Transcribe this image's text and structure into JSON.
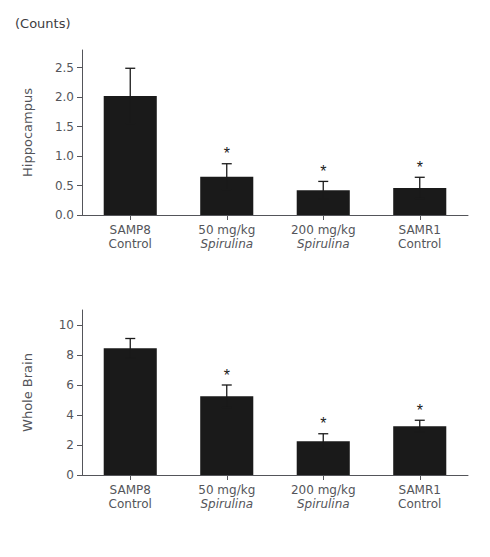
{
  "chart_data": [
    {
      "type": "bar",
      "annotations": [
        "(Counts)"
      ],
      "ylabel": "Hippocampus",
      "categories": [
        "SAMP8\nControl",
        "50 mg/kg\nSpirulina",
        "200 mg/kg\nSpirulina",
        "SAMR1\nControl"
      ],
      "italic": [
        false,
        true,
        true,
        false
      ],
      "values": [
        2.02,
        0.65,
        0.42,
        0.46
      ],
      "errors": [
        0.47,
        0.22,
        0.15,
        0.18
      ],
      "significance": [
        null,
        "*",
        "*",
        "*"
      ],
      "color": "#1a1a1a",
      "ylim": [
        0,
        2.8
      ],
      "yticks": [
        {
          "value": 0,
          "label": "0.0"
        },
        {
          "value": 0.5,
          "label": "0.5"
        },
        {
          "value": 1.0,
          "label": "1.0"
        },
        {
          "value": 1.5,
          "label": "1.5"
        },
        {
          "value": 2.0,
          "label": "2.0"
        },
        {
          "value": 2.5,
          "label": "2.5"
        }
      ],
      "grid": false
    },
    {
      "type": "bar",
      "ylabel": "Whole Brain",
      "categories": [
        "SAMP8\nControl",
        "50 mg/kg\nSpirulina",
        "200 mg/kg\nSpirulina",
        "SAMR1\nControl"
      ],
      "italic": [
        false,
        true,
        true,
        false
      ],
      "values": [
        8.45,
        5.25,
        2.25,
        3.25
      ],
      "errors": [
        0.65,
        0.75,
        0.5,
        0.4
      ],
      "significance": [
        null,
        "*",
        "*",
        "*"
      ],
      "color": "#1a1a1a",
      "ylim": [
        0,
        11
      ],
      "yticks": [
        0,
        2,
        4,
        6,
        8,
        10
      ],
      "grid": false
    }
  ]
}
